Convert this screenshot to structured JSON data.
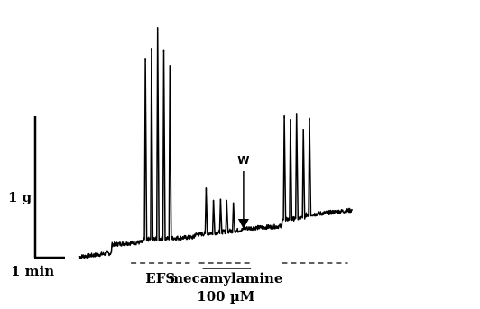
{
  "chart_data": {
    "type": "line",
    "title": "",
    "xlabel": "",
    "ylabel": "",
    "grid": false,
    "legend": "none",
    "colors": {
      "trace": "#000000"
    },
    "scale_bars": {
      "y": {
        "label": "1 g",
        "value_g": 1
      },
      "x": {
        "label": "1 min",
        "value_min": 1
      }
    },
    "x_range_min": [
      0,
      8.9
    ],
    "y_range_g": [
      -0.05,
      2.0
    ],
    "baseline_segments": [
      {
        "x": [
          0.0,
          1.05
        ],
        "y": [
          0.0,
          0.03
        ]
      },
      {
        "x": [
          1.05,
          2.1
        ],
        "y": [
          0.1,
          0.12
        ]
      },
      {
        "x": [
          2.1,
          3.75
        ],
        "y": [
          0.14,
          0.16
        ]
      },
      {
        "x": [
          3.75,
          4.55
        ],
        "y": [
          0.18,
          0.2
        ]
      },
      {
        "x": [
          4.55,
          5.35
        ],
        "y": [
          0.2,
          0.22
        ]
      },
      {
        "x": [
          5.35,
          6.6
        ],
        "y": [
          0.23,
          0.25
        ]
      },
      {
        "x": [
          6.6,
          7.35
        ],
        "y": [
          0.3,
          0.32
        ]
      },
      {
        "x": [
          7.35,
          8.9
        ],
        "y": [
          0.34,
          0.38
        ]
      }
    ],
    "series": [
      {
        "x": [
          2.15,
          2.35,
          2.55,
          2.75,
          2.95
        ],
        "values": [
          1.62,
          1.7,
          1.87,
          1.69,
          1.56
        ]
      },
      {
        "x": [
          4.13,
          4.37,
          4.6,
          4.8,
          5.02
        ],
        "values": [
          0.56,
          0.46,
          0.47,
          0.46,
          0.44
        ]
      },
      {
        "x": [
          6.68,
          6.88,
          7.08,
          7.3,
          7.5
        ],
        "values": [
          1.15,
          1.12,
          1.17,
          1.04,
          1.13
        ]
      }
    ],
    "stimulation_periods": [
      {
        "x": [
          1.68,
          3.6
        ],
        "label": "EFS"
      },
      {
        "x": [
          3.9,
          5.65
        ],
        "label": "mecamylamine",
        "sublabel": "100 µM"
      },
      {
        "x": [
          6.6,
          8.75
        ],
        "label": ""
      }
    ],
    "annotations": [
      {
        "label": "W",
        "x": 5.35
      }
    ]
  }
}
